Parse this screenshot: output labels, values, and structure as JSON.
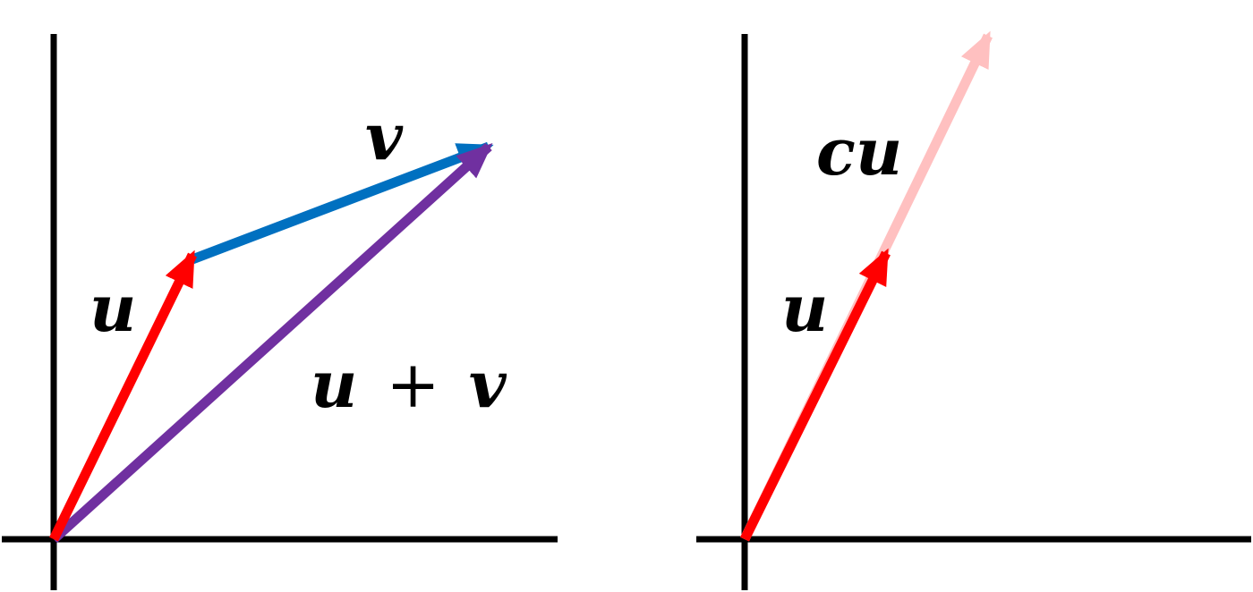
{
  "colors": {
    "background": "#ffffff",
    "axes": "#000000",
    "u": "#ff0000",
    "v": "#0070c0",
    "u_plus_v": "#7030a0",
    "cu": "#ffc0c0"
  },
  "left_panel": {
    "u_label": "u",
    "v_label": "v",
    "sum_label": {
      "left": "u",
      "op": "+",
      "right": "v"
    }
  },
  "right_panel": {
    "u_label": "u",
    "cu_label": "cu"
  }
}
